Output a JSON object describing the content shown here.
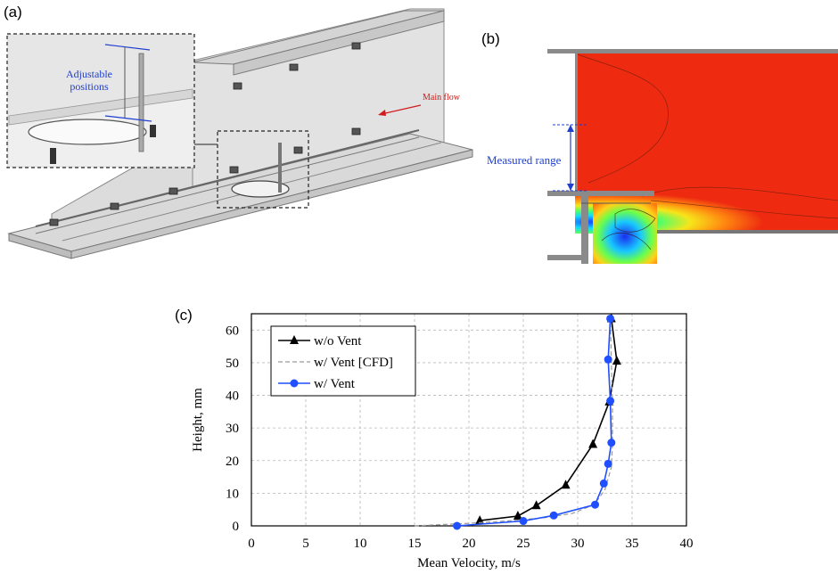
{
  "panel_a": {
    "label": "(a)",
    "inset_label_line1": "Adjustable",
    "inset_label_line2": "positions",
    "main_flow_label": "Main flow"
  },
  "panel_b": {
    "label": "(b)",
    "measured_range_label": "Measured range"
  },
  "panel_c": {
    "label": "(c)"
  },
  "colors": {
    "wo_vent": "#000000",
    "cfd": "#9a9a9a",
    "w_vent": "#1f4fff",
    "cfd_red": "#ee2a10",
    "annotation_blue": "#1f3fd0",
    "main_flow_red": "#d21a1a"
  },
  "chart_data": {
    "type": "line",
    "xlabel": "Mean Velocity, m/s",
    "ylabel": "Height, mm",
    "xlim": [
      0,
      40
    ],
    "ylim": [
      0,
      65
    ],
    "xticks": [
      "0",
      "5",
      "10",
      "15",
      "20",
      "25",
      "30",
      "35",
      "40"
    ],
    "yticks": [
      "0",
      "10",
      "20",
      "30",
      "40",
      "50",
      "60"
    ],
    "grid": true,
    "legend_position": "top-left",
    "series": [
      {
        "name": "w/o Vent",
        "marker": "triangle",
        "style": "solid",
        "points": [
          [
            21.0,
            1.6
          ],
          [
            24.5,
            3.0
          ],
          [
            26.2,
            6.2
          ],
          [
            28.9,
            12.5
          ],
          [
            31.4,
            25.0
          ],
          [
            32.9,
            38.0
          ],
          [
            33.6,
            50.5
          ],
          [
            33.1,
            63.5
          ]
        ]
      },
      {
        "name": "w/ Vent [CFD]",
        "marker": "none",
        "style": "dashed",
        "points": [
          [
            15.0,
            0.0
          ],
          [
            20.0,
            0.8
          ],
          [
            24.0,
            1.6
          ],
          [
            27.0,
            2.5
          ],
          [
            29.5,
            3.8
          ],
          [
            31.5,
            6.5
          ],
          [
            32.5,
            11.0
          ],
          [
            33.1,
            18.0
          ],
          [
            33.2,
            25.0
          ],
          [
            33.2,
            38.0
          ],
          [
            33.1,
            50.0
          ],
          [
            33.0,
            63.5
          ]
        ]
      },
      {
        "name": "w/ Vent",
        "marker": "circle",
        "style": "solid",
        "points": [
          [
            18.9,
            0.0
          ],
          [
            25.0,
            1.5
          ],
          [
            27.8,
            3.2
          ],
          [
            31.6,
            6.5
          ],
          [
            32.4,
            13.0
          ],
          [
            32.8,
            19.0
          ],
          [
            33.1,
            25.5
          ],
          [
            33.0,
            38.3
          ],
          [
            32.8,
            51.0
          ],
          [
            33.0,
            63.5
          ]
        ]
      }
    ]
  }
}
